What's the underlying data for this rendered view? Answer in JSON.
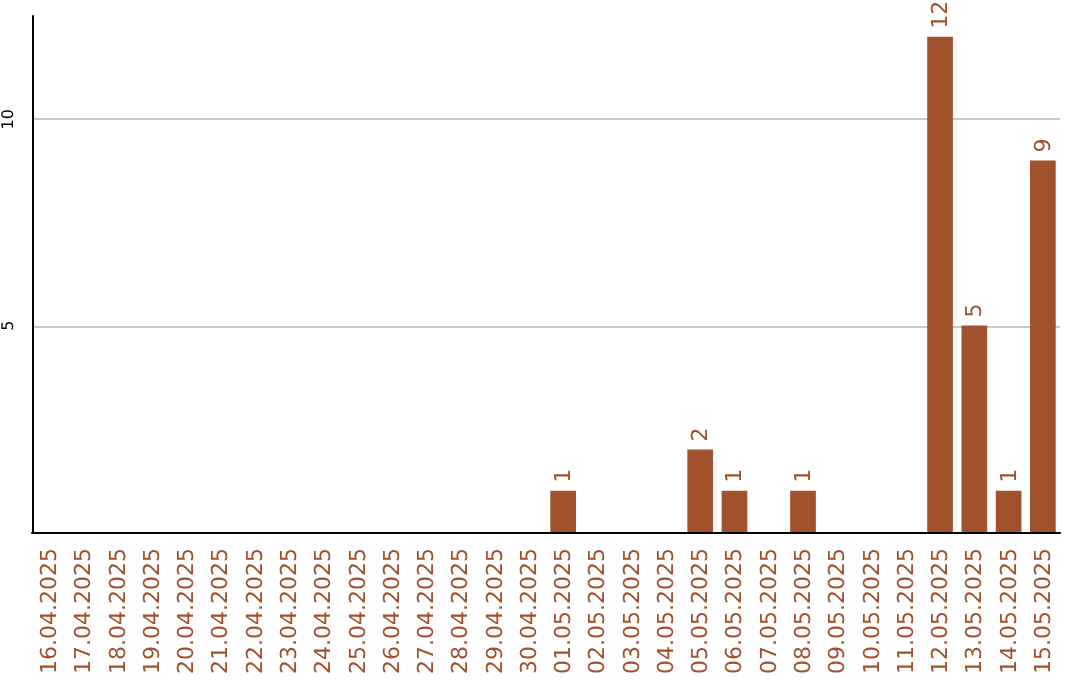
{
  "chart_data": {
    "type": "bar",
    "categories": [
      "16.04.2025",
      "17.04.2025",
      "18.04.2025",
      "19.04.2025",
      "20.04.2025",
      "21.04.2025",
      "22.04.2025",
      "23.04.2025",
      "24.04.2025",
      "25.04.2025",
      "26.04.2025",
      "27.04.2025",
      "28.04.2025",
      "29.04.2025",
      "30.04.2025",
      "01.05.2025",
      "02.05.2025",
      "03.05.2025",
      "04.05.2025",
      "05.05.2025",
      "06.05.2025",
      "07.05.2025",
      "08.05.2025",
      "09.05.2025",
      "10.05.2025",
      "11.05.2025",
      "12.05.2025",
      "13.05.2025",
      "14.05.2025",
      "15.05.2025"
    ],
    "values": [
      0,
      0,
      0,
      0,
      0,
      0,
      0,
      0,
      0,
      0,
      0,
      0,
      0,
      0,
      0,
      1,
      0,
      0,
      0,
      2,
      1,
      0,
      1,
      0,
      0,
      0,
      12,
      5,
      1,
      9
    ],
    "value_labels": [
      null,
      null,
      null,
      null,
      null,
      null,
      null,
      null,
      null,
      null,
      null,
      null,
      null,
      null,
      null,
      "1",
      null,
      null,
      null,
      "2",
      "1",
      null,
      "1",
      null,
      null,
      null,
      "12",
      "5",
      "1",
      "9"
    ],
    "color": "#a0522d",
    "ylim": [
      0,
      12.5
    ],
    "yticks": [
      5,
      10
    ],
    "grid": "y"
  }
}
